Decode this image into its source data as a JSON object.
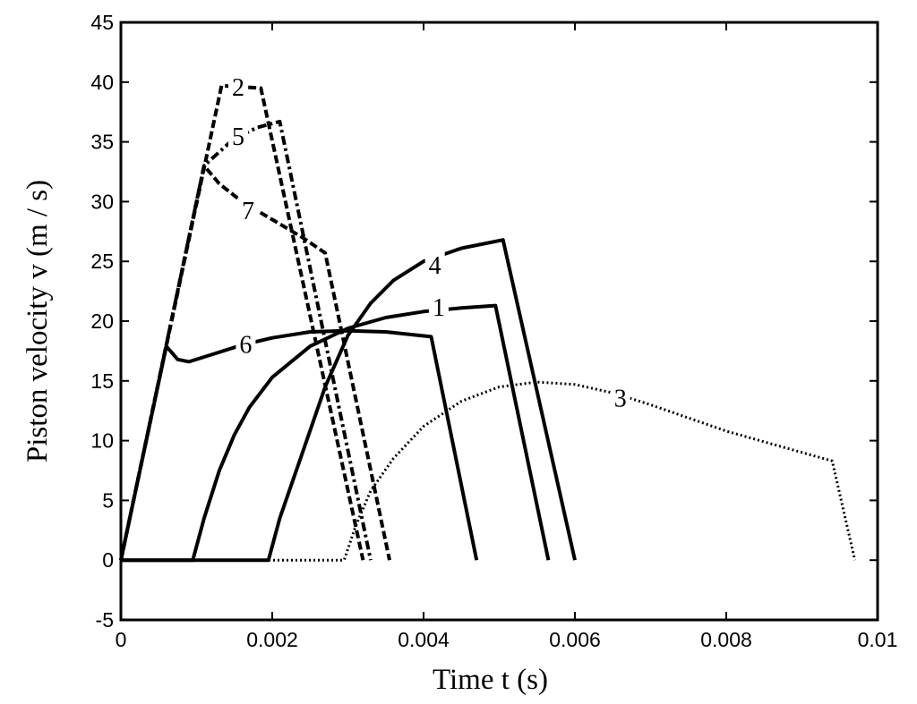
{
  "chart_data": {
    "type": "line",
    "xlabel": "Time  t (s)",
    "ylabel": "Piston velocity v (m / s)",
    "xlim": [
      0,
      0.01
    ],
    "ylim": [
      -5,
      45
    ],
    "xticks": [
      "0",
      "0.002",
      "0.004",
      "0.006",
      "0.008",
      "0.01"
    ],
    "yticks": [
      "-5",
      "0",
      "5",
      "10",
      "15",
      "20",
      "25",
      "30",
      "35",
      "40",
      "45"
    ],
    "xtick_values": [
      0,
      0.002,
      0.004,
      0.006,
      0.008,
      0.01
    ],
    "ytick_values": [
      -5,
      0,
      5,
      10,
      15,
      20,
      25,
      30,
      35,
      40,
      45
    ],
    "grid": false,
    "series": [
      {
        "label": "1",
        "style": "solid",
        "label_at": [
          0.0042,
          21.2
        ],
        "points": [
          [
            0,
            0
          ],
          [
            0.00095,
            0
          ],
          [
            0.0011,
            3.5
          ],
          [
            0.0013,
            7.5
          ],
          [
            0.0015,
            10.5
          ],
          [
            0.0017,
            12.8
          ],
          [
            0.002,
            15.3
          ],
          [
            0.0025,
            17.9
          ],
          [
            0.003,
            19.4
          ],
          [
            0.0035,
            20.3
          ],
          [
            0.004,
            20.8
          ],
          [
            0.0045,
            21.1
          ],
          [
            0.00495,
            21.3
          ],
          [
            0.00565,
            0
          ]
        ]
      },
      {
        "label": "2",
        "style": "dashed",
        "label_at": [
          0.00155,
          39.6
        ],
        "points": [
          [
            0,
            0
          ],
          [
            0.00133,
            39.7
          ],
          [
            0.00185,
            39.5
          ],
          [
            0.0032,
            0
          ]
        ]
      },
      {
        "label": "3",
        "style": "dotted",
        "label_at": [
          0.0066,
          13.6
        ],
        "points": [
          [
            0,
            0
          ],
          [
            0.00295,
            0
          ],
          [
            0.0031,
            2.8
          ],
          [
            0.0033,
            5.8
          ],
          [
            0.0036,
            8.5
          ],
          [
            0.004,
            11.2
          ],
          [
            0.0045,
            13.3
          ],
          [
            0.005,
            14.5
          ],
          [
            0.0055,
            14.9
          ],
          [
            0.006,
            14.7
          ],
          [
            0.0065,
            14
          ],
          [
            0.007,
            13
          ],
          [
            0.0075,
            11.9
          ],
          [
            0.008,
            10.8
          ],
          [
            0.0085,
            9.9
          ],
          [
            0.0094,
            8.3
          ],
          [
            0.0097,
            0
          ]
        ]
      },
      {
        "label": "4",
        "style": "solid",
        "label_at": [
          0.00415,
          24.7
        ],
        "points": [
          [
            0,
            0
          ],
          [
            0.00195,
            0
          ],
          [
            0.0021,
            3.5
          ],
          [
            0.0024,
            9
          ],
          [
            0.0027,
            14.5
          ],
          [
            0.003,
            18.8
          ],
          [
            0.0033,
            21.5
          ],
          [
            0.0036,
            23.4
          ],
          [
            0.004,
            25
          ],
          [
            0.0045,
            26.1
          ],
          [
            0.00505,
            26.8
          ],
          [
            0.006,
            0
          ]
        ]
      },
      {
        "label": "5",
        "style": "dashdot",
        "label_at": [
          0.00155,
          35.5
        ],
        "points": [
          [
            0,
            0
          ],
          [
            0.0011,
            33
          ],
          [
            0.0015,
            35.3
          ],
          [
            0.0018,
            36.2
          ],
          [
            0.0021,
            36.7
          ],
          [
            0.0033,
            0
          ]
        ]
      },
      {
        "label": "6",
        "style": "solid",
        "label_at": [
          0.00165,
          18.1
        ],
        "points": [
          [
            0,
            0
          ],
          [
            0.0006,
            17.9
          ],
          [
            0.00075,
            16.8
          ],
          [
            0.0009,
            16.6
          ],
          [
            0.0012,
            17.2
          ],
          [
            0.0016,
            18
          ],
          [
            0.002,
            18.6
          ],
          [
            0.0025,
            19.1
          ],
          [
            0.003,
            19.2
          ],
          [
            0.0035,
            19.1
          ],
          [
            0.0041,
            18.7
          ],
          [
            0.0047,
            0
          ]
        ]
      },
      {
        "label": "7",
        "style": "dashed",
        "label_at": [
          0.00168,
          29.3
        ],
        "points": [
          [
            0,
            0
          ],
          [
            0.0011,
            33
          ],
          [
            0.0013,
            31.5
          ],
          [
            0.0016,
            30
          ],
          [
            0.002,
            28.5
          ],
          [
            0.0024,
            27
          ],
          [
            0.0027,
            25.7
          ],
          [
            0.00355,
            0
          ]
        ]
      }
    ]
  }
}
